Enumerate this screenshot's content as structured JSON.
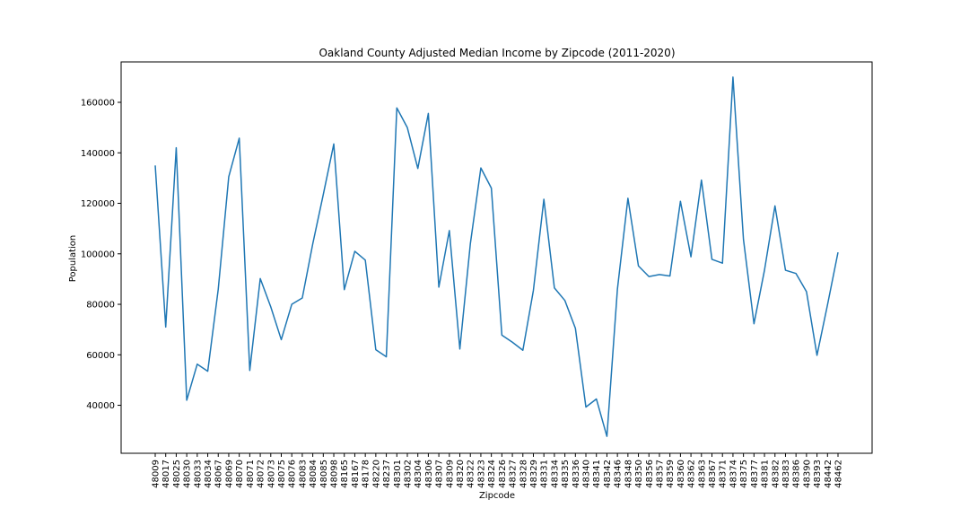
{
  "chart_data": {
    "type": "line",
    "title": "Oakland County Adjusted Median Income by Zipcode (2011-2020)",
    "xlabel": "Zipcode",
    "ylabel": "Population",
    "ylim": [
      21000,
      176000
    ],
    "yticks": [
      40000,
      60000,
      80000,
      100000,
      120000,
      140000,
      160000
    ],
    "grid": false,
    "line_color": "#1f77b4",
    "categories": [
      "48009",
      "48017",
      "48025",
      "48030",
      "48033",
      "48034",
      "48067",
      "48069",
      "48070",
      "48071",
      "48072",
      "48073",
      "48075",
      "48076",
      "48083",
      "48084",
      "48085",
      "48098",
      "48165",
      "48167",
      "48178",
      "48220",
      "48237",
      "48301",
      "48302",
      "48304",
      "48306",
      "48307",
      "48309",
      "48320",
      "48322",
      "48323",
      "48324",
      "48326",
      "48327",
      "48328",
      "48329",
      "48331",
      "48334",
      "48335",
      "48336",
      "48340",
      "48341",
      "48342",
      "48346",
      "48348",
      "48350",
      "48356",
      "48357",
      "48359",
      "48360",
      "48362",
      "48363",
      "48367",
      "48371",
      "48374",
      "48375",
      "48377",
      "48381",
      "48382",
      "48383",
      "48386",
      "48390",
      "48393",
      "48442",
      "48462"
    ],
    "values": [
      135000,
      71000,
      142000,
      42000,
      56300,
      53500,
      86000,
      130500,
      145800,
      53800,
      90200,
      79000,
      66000,
      80000,
      82500,
      104000,
      123500,
      143500,
      85800,
      101000,
      97500,
      62000,
      59200,
      157800,
      150000,
      133800,
      155600,
      86800,
      109200,
      62300,
      104000,
      134000,
      126000,
      67800,
      65000,
      61800,
      85500,
      121600,
      86500,
      81500,
      70500,
      39300,
      42500,
      27700,
      86000,
      122000,
      95200,
      91000,
      91800,
      91200,
      120800,
      98800,
      129200,
      97800,
      96300,
      170000,
      105700,
      72300,
      93500,
      119000,
      93500,
      92200,
      85000,
      59800,
      79800,
      100600
    ]
  }
}
